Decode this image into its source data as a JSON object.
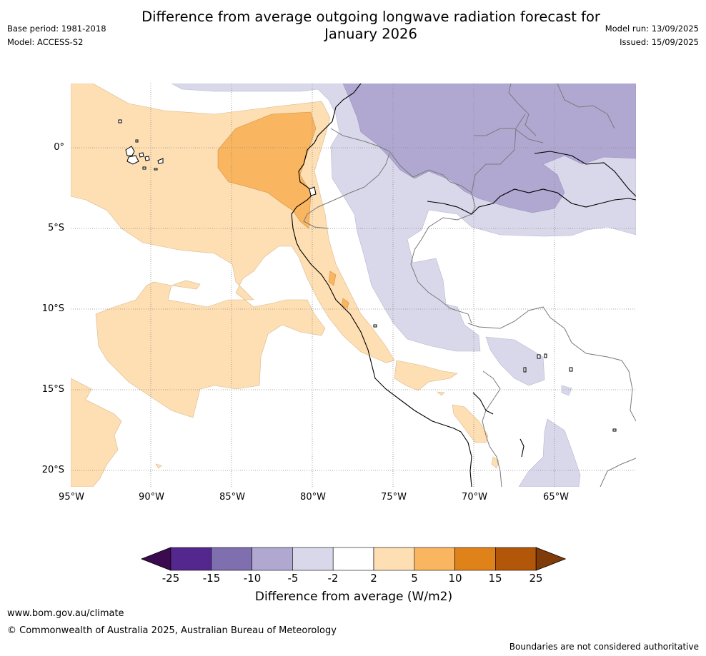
{
  "title": {
    "line1": "Difference from average outgoing longwave radiation forecast for",
    "line2": "January 2026"
  },
  "meta": {
    "base_period": "Base period: 1981-2018",
    "model": "Model: ACCESS-S2",
    "model_run": "Model run: 13/09/2025",
    "issued": "Issued: 15/09/2025"
  },
  "map": {
    "lat_labels": [
      "0°",
      "5°S",
      "10°S",
      "15°S",
      "20°S"
    ],
    "lon_labels": [
      "95°W",
      "90°W",
      "85°W",
      "80°W",
      "75°W",
      "70°W",
      "65°W"
    ],
    "lat_values": [
      0,
      -5,
      -10,
      -15,
      -20
    ],
    "lon_values": [
      -95,
      -90,
      -85,
      -80,
      -75,
      -70,
      -65
    ],
    "region": {
      "lon_range": [
        -95,
        -60
      ],
      "lat_range": [
        -21,
        4
      ]
    }
  },
  "legend": {
    "label": "Difference from average (W/m2)",
    "ticks": [
      "-25",
      "-15",
      "-10",
      "-5",
      "-2",
      "2",
      "5",
      "10",
      "15",
      "25"
    ],
    "colors": [
      "#3b0a4f",
      "#54278f",
      "#7f6fae",
      "#b1a8d2",
      "#d8d8ea",
      "#ffffff",
      "#fddfb3",
      "#f9b55f",
      "#e0821a",
      "#b25609",
      "#7f3b08"
    ],
    "low_extend_color": "#3b0a4f",
    "high_extend_color": "#7f3b08"
  },
  "footer": {
    "url": "www.bom.gov.au/climate",
    "copyright": "© Commonwealth of Australia 2025, Australian Bureau of Meteorology",
    "disclaimer": "Boundaries are not considered authoritative"
  }
}
